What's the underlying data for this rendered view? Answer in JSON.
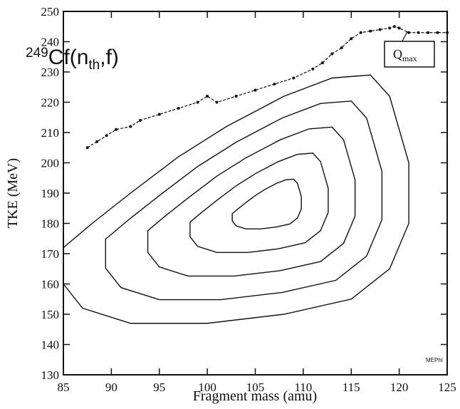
{
  "chart_data": {
    "type": "contour",
    "title_parts": [
      "249",
      "Cf(n",
      "th",
      ",f)"
    ],
    "annotation_parts": [
      "Q",
      "max"
    ],
    "credit": "MEPhI",
    "xlabel": "Fragment mass (amu)",
    "ylabel": "TKE (MeV)",
    "xlim": [
      85,
      125
    ],
    "ylim": [
      130,
      250
    ],
    "xticks": [
      85,
      90,
      95,
      100,
      105,
      110,
      115,
      120,
      125
    ],
    "yticks": [
      130,
      140,
      150,
      160,
      170,
      180,
      190,
      200,
      210,
      220,
      230,
      240,
      250
    ],
    "contour_color": "#111111",
    "qmax": {
      "color": "#111111",
      "x": [
        87.5,
        88.5,
        89.5,
        90.5,
        92,
        93,
        95,
        97,
        99,
        100,
        101,
        103,
        105,
        107,
        109,
        111,
        112,
        113,
        114,
        115,
        116,
        117,
        118,
        119,
        119.5,
        120,
        121,
        122,
        123,
        124,
        125
      ],
      "y": [
        205,
        207,
        209,
        211,
        212,
        214,
        216,
        218,
        220,
        222,
        220,
        222,
        224,
        226,
        228,
        231,
        233,
        236,
        238,
        241,
        243,
        243.5,
        244,
        244.5,
        245,
        244.5,
        243,
        243,
        243,
        243,
        243
      ]
    },
    "contours": [
      {
        "x": [
          85,
          88,
          92,
          97,
          102,
          108,
          113,
          117,
          119,
          121,
          121,
          119,
          115,
          108,
          100,
          92,
          87,
          85
        ],
        "y": [
          172,
          180,
          190,
          202,
          212,
          222,
          228,
          229,
          222,
          200,
          180,
          165,
          155,
          150,
          147,
          147,
          152,
          160
        ]
      },
      {
        "x": [
          89.4,
          91.8,
          95,
          99,
          103,
          107.8,
          111.8,
          115,
          116.6,
          118.2,
          118.2,
          116.6,
          113.4,
          107.8,
          101.4,
          95,
          91,
          89.4
        ],
        "y": [
          174.8,
          181.2,
          189.2,
          198.8,
          206.8,
          214.8,
          219.6,
          220.4,
          214.8,
          197.2,
          181.2,
          169.2,
          161.2,
          157.2,
          154.8,
          154.8,
          158.8,
          165.2
        ]
      },
      {
        "x": [
          93.8,
          95.6,
          98,
          101,
          104,
          107.6,
          110.6,
          113,
          114.2,
          115.4,
          115.4,
          114.2,
          111.8,
          107.6,
          102.8,
          98,
          95,
          93.8
        ],
        "y": [
          177.6,
          182.4,
          188.4,
          195.6,
          201.6,
          207.6,
          211.2,
          211.8,
          207.6,
          194.4,
          182.4,
          173.4,
          167.4,
          164.4,
          162.6,
          162.6,
          165.6,
          170.4
        ]
      },
      {
        "x": [
          98.2,
          99.4,
          101,
          103,
          105,
          107.4,
          109.4,
          111,
          111.8,
          112.6,
          112.6,
          111.8,
          110.2,
          107.4,
          104.2,
          101,
          99,
          98.2
        ],
        "y": [
          180.4,
          183.6,
          187.6,
          192.4,
          196.4,
          200.4,
          202.8,
          203.2,
          200.4,
          191.6,
          183.6,
          177.6,
          173.6,
          171.6,
          170.4,
          170.4,
          172.4,
          175.6
        ]
      },
      {
        "x": [
          102.6,
          103.2,
          104,
          105,
          106,
          107.2,
          108.2,
          109,
          109.4,
          109.8,
          109.8,
          109.4,
          108.6,
          107.2,
          105.6,
          104,
          103,
          102.6
        ],
        "y": [
          183.2,
          184.8,
          186.8,
          189.2,
          191.2,
          193.2,
          194.4,
          194.6,
          193.2,
          188.8,
          184.8,
          181.8,
          179.8,
          178.8,
          178.2,
          178.2,
          179.2,
          180.8
        ]
      }
    ]
  }
}
